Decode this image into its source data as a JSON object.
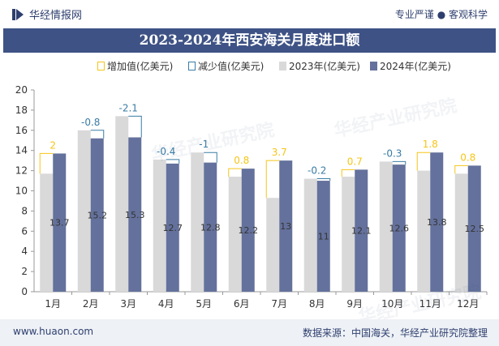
{
  "header": {
    "brand": "华经情报网",
    "slogan": "专业严谨 ● 客观科学"
  },
  "watermark": "华经产业研究院",
  "footer": {
    "website": "www.huaon.com",
    "source": "数据来源：中国海关，华经产业研究院整理"
  },
  "colors": {
    "increase": "#f5c518",
    "decrease": "#3a7ca5",
    "y2023": "#d9d9d9",
    "y2024": "#64719c",
    "title_bg": "#3e5285"
  },
  "chart_data": {
    "type": "bar",
    "title": "2023-2024年西安海关月度进口额",
    "categories": [
      "1月",
      "2月",
      "3月",
      "4月",
      "5月",
      "6月",
      "7月",
      "8月",
      "9月",
      "10月",
      "11月",
      "12月"
    ],
    "series": [
      {
        "name": "2023年(亿美元)",
        "values": [
          11.7,
          16.0,
          17.4,
          13.1,
          13.8,
          11.4,
          9.3,
          11.2,
          11.4,
          12.9,
          12.0,
          11.7
        ]
      },
      {
        "name": "2024年(亿美元)",
        "values": [
          13.7,
          15.2,
          15.3,
          12.7,
          12.8,
          12.2,
          13,
          11,
          12.1,
          12.6,
          13.8,
          12.5
        ]
      }
    ],
    "change_legend": {
      "increase": "增加值(亿美元)",
      "decrease": "减少值(亿美元)"
    },
    "change": [
      2,
      -0.8,
      -2.1,
      -0.4,
      -1,
      0.8,
      3.7,
      -0.2,
      0.7,
      -0.3,
      1.8,
      0.8
    ],
    "change_labels": [
      "2",
      "-0.8",
      "-2.1",
      "-0.4",
      "-1",
      "0.8",
      "3.7",
      "-0.2",
      "0.7",
      "-0.3",
      "1.8",
      "0.8"
    ],
    "value_labels_2024": [
      "13.7",
      "15.2",
      "15.3",
      "12.7",
      "12.8",
      "12.2",
      "13",
      "11",
      "12.1",
      "12.6",
      "13.8",
      "12.5"
    ],
    "yticks": [
      "0",
      "2",
      "4",
      "6",
      "8",
      "10",
      "12",
      "14",
      "16",
      "18",
      "20"
    ],
    "ylim": [
      0,
      20
    ],
    "grid": false,
    "legend_position": "top"
  }
}
